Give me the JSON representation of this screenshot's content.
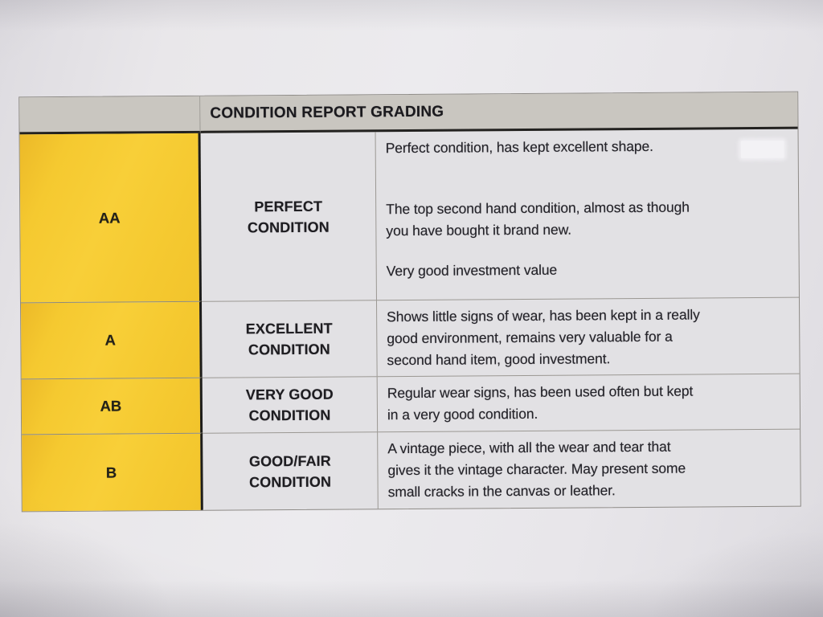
{
  "document": {
    "title": "CONDITION REPORT GRADING",
    "table": {
      "header": "CONDITION REPORT GRADING",
      "rows": [
        {
          "grade": "AA",
          "condition": "PERFECT\nCONDITION",
          "paras": [
            "Perfect condition, has kept excellent shape.",
            "The top second hand condition, almost as though\nyou have bought it brand new.",
            "Very good investment value"
          ]
        },
        {
          "grade": "A",
          "condition": "EXCELLENT\nCONDITION",
          "paras": [
            "Shows little signs of wear, has been kept in a really\ngood environment, remains very valuable for a\nsecond hand item, good investment."
          ]
        },
        {
          "grade": "AB",
          "condition": "VERY GOOD\nCONDITION",
          "paras": [
            "Regular wear signs, has been used often but kept\nin a very good condition."
          ]
        },
        {
          "grade": "B",
          "condition": "GOOD/FAIR\nCONDITION",
          "paras": [
            "A vintage piece, with all the wear and tear that\ngives it the vintage character. May present some\nsmall cracks in the canvas or leather."
          ]
        }
      ]
    },
    "colors": {
      "grade_column_yellow": "#f5c930",
      "header_gray": "#c9c6c0",
      "cell_background": "#e2e1e4",
      "paper_background": "#e7e5e9",
      "heavy_border": "#232220",
      "light_border": "#9b9893",
      "text": "#242329"
    }
  }
}
